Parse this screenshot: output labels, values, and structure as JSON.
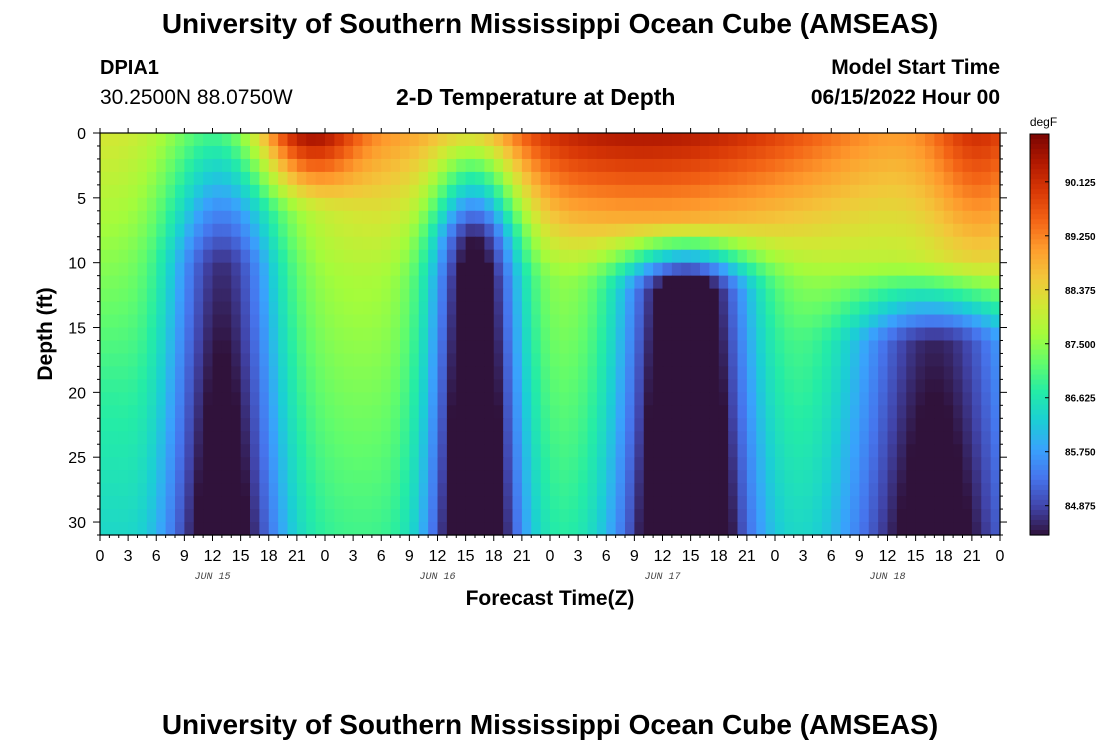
{
  "header": {
    "title": "University of Southern Mississippi Ocean Cube (AMSEAS)",
    "station": "DPIA1",
    "coords": "30.2500N  88.0750W",
    "subtitle": "2-D Temperature at Depth",
    "model_start_label": "Model Start Time",
    "model_start_value": "06/15/2022 Hour 00"
  },
  "footer": {
    "title_repeat": "University of Southern Mississippi Ocean Cube (AMSEAS)"
  },
  "chart_data": {
    "type": "heatmap",
    "title": "2-D Temperature at Depth",
    "xlabel": "Forecast Time(Z)",
    "ylabel": "Depth (ft)",
    "x_ticks": [
      "0",
      "3",
      "6",
      "9",
      "12",
      "15",
      "18",
      "21",
      "0",
      "3",
      "6",
      "9",
      "12",
      "15",
      "18",
      "21",
      "0",
      "3",
      "6",
      "9",
      "12",
      "15",
      "18",
      "21",
      "0",
      "3",
      "6",
      "9",
      "12",
      "15",
      "18",
      "21",
      "0"
    ],
    "date_labels": [
      {
        "label": "JUN 15",
        "hour": 12
      },
      {
        "label": "JUN 16",
        "hour": 36
      },
      {
        "label": "JUN 17",
        "hour": 60
      },
      {
        "label": "JUN 18",
        "hour": 84
      }
    ],
    "xlim_hours": [
      0,
      96
    ],
    "y_ticks": [
      "0",
      "5",
      "10",
      "15",
      "20",
      "25",
      "30"
    ],
    "ylim_ft": [
      0,
      31
    ],
    "colorbar": {
      "unit": "degF",
      "ticks": [
        "90.125",
        "89.250",
        "88.375",
        "87.500",
        "86.625",
        "85.750",
        "84.875"
      ],
      "range": [
        84.4,
        90.9
      ]
    },
    "field_description": "Temperature (degF) vs forecast hour and depth; warm near surface around hours 18-24, 40-96; cold columns at depth near hours 14, 40, 62, 88",
    "colors": [
      "#30123b",
      "#4145ab",
      "#4675ed",
      "#39a2fc",
      "#1bcfd4",
      "#24eca6",
      "#61fc6c",
      "#a4fc3b",
      "#d1e834",
      "#f3c63a",
      "#fe9b2d",
      "#f36315",
      "#d93806",
      "#b11901",
      "#7a0402"
    ]
  }
}
